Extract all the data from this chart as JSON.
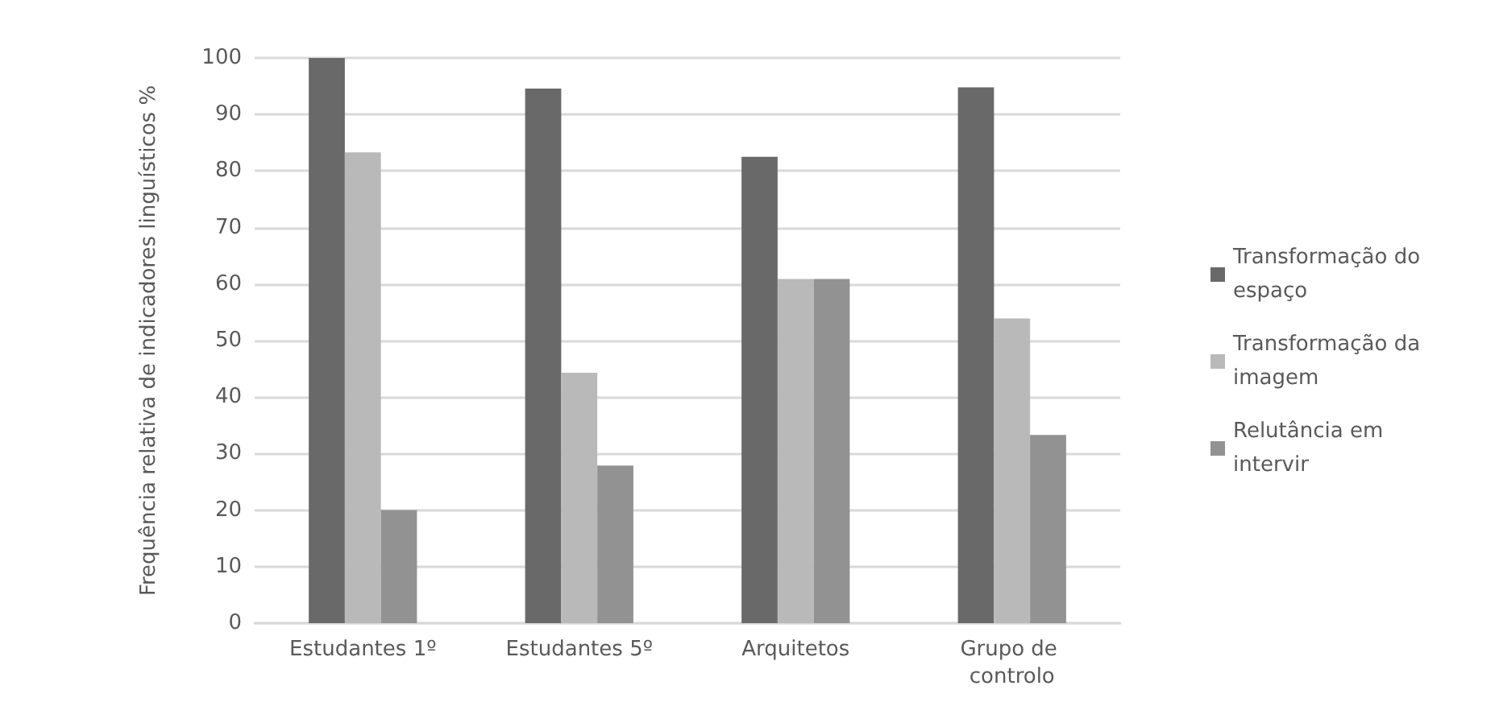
{
  "chart_data": {
    "type": "bar",
    "ylabel": "Frequência relativa de indicadores linguísticos %",
    "categories": [
      "Estudantes 1º",
      "Estudantes 5º",
      "Arquitetos",
      "Grupo de controlo"
    ],
    "series": [
      {
        "name": "Transformação do espaço",
        "color": "#696969",
        "values": [
          100,
          94.6,
          82.5,
          94.8
        ]
      },
      {
        "name": "Transformação da imagem",
        "color": "#b9b9b9",
        "values": [
          83.3,
          44.3,
          60.9,
          53.9
        ]
      },
      {
        "name": "Relutância em intervir",
        "color": "#929292",
        "values": [
          20,
          27.9,
          60.9,
          33.3
        ]
      }
    ],
    "ylim": [
      0,
      100
    ],
    "yticks": [
      0,
      10,
      20,
      30,
      40,
      50,
      60,
      70,
      80,
      90,
      100
    ],
    "grid": "y",
    "legend": "right"
  }
}
